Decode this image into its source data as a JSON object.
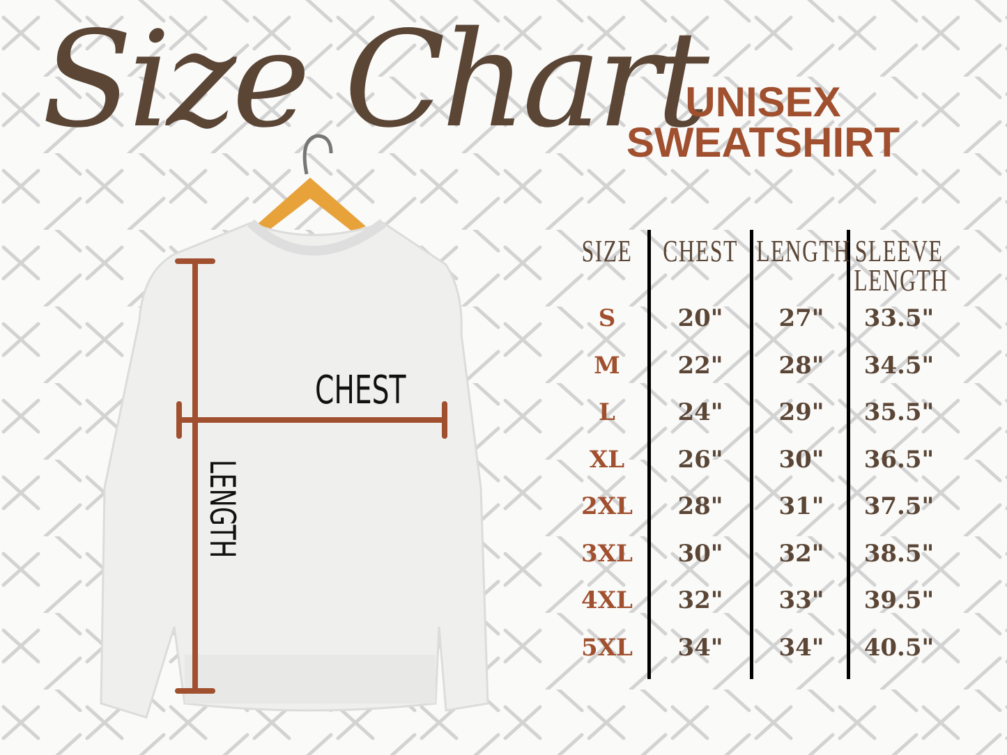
{
  "title": "Size Chart",
  "subtitle": [
    "UNISEX",
    "SWEATSHIRT"
  ],
  "garment_labels": {
    "chest": "CHEST",
    "length": "LENGTH"
  },
  "colors": {
    "brown": "#5b4636",
    "accent": "#a0502e",
    "background": "#fafaf9",
    "hanger": "#e8a23a"
  },
  "table": {
    "header_lines": [
      [
        "SIZE"
      ],
      [
        "CHEST"
      ],
      [
        "LENGTH"
      ],
      [
        "SLEEVE",
        "LENGTH"
      ]
    ],
    "rows": [
      [
        "S",
        "20\"",
        "27\"",
        "33.5\""
      ],
      [
        "M",
        "22\"",
        "28\"",
        "34.5\""
      ],
      [
        "L",
        "24\"",
        "29\"",
        "35.5\""
      ],
      [
        "XL",
        "26\"",
        "30\"",
        "36.5\""
      ],
      [
        "2XL",
        "28\"",
        "31\"",
        "37.5\""
      ],
      [
        "3XL",
        "30\"",
        "32\"",
        "38.5\""
      ],
      [
        "4XL",
        "32\"",
        "33\"",
        "39.5\""
      ],
      [
        "5XL",
        "34\"",
        "34\"",
        "40.5\""
      ]
    ]
  }
}
